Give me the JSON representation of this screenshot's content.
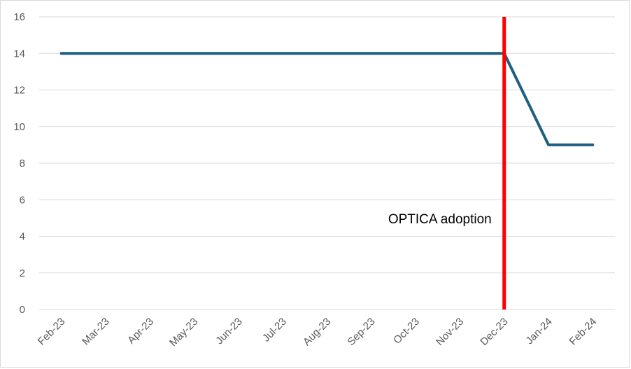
{
  "chart_data": {
    "type": "line",
    "title": "",
    "xlabel": "",
    "ylabel": "",
    "ylim": [
      0,
      16
    ],
    "yticks": [
      "0",
      "2",
      "4",
      "6",
      "8",
      "10",
      "12",
      "14",
      "16"
    ],
    "categories": [
      "Feb-23",
      "Mar-23",
      "Apr-23",
      "May-23",
      "Jun-23",
      "Jul-23",
      "Aug-23",
      "Sep-23",
      "Oct-23",
      "Nov-23",
      "Dec-23",
      "Jan-24",
      "Feb-24"
    ],
    "series": [
      {
        "values": [
          14,
          14,
          14,
          14,
          14,
          14,
          14,
          14,
          14,
          14,
          14,
          9,
          9
        ],
        "color": "#1f5f80"
      }
    ],
    "grid": true,
    "legend": "none",
    "annotation": {
      "label": "OPTICA adoption",
      "category": "Dec-23",
      "color": "#ff0000"
    }
  }
}
